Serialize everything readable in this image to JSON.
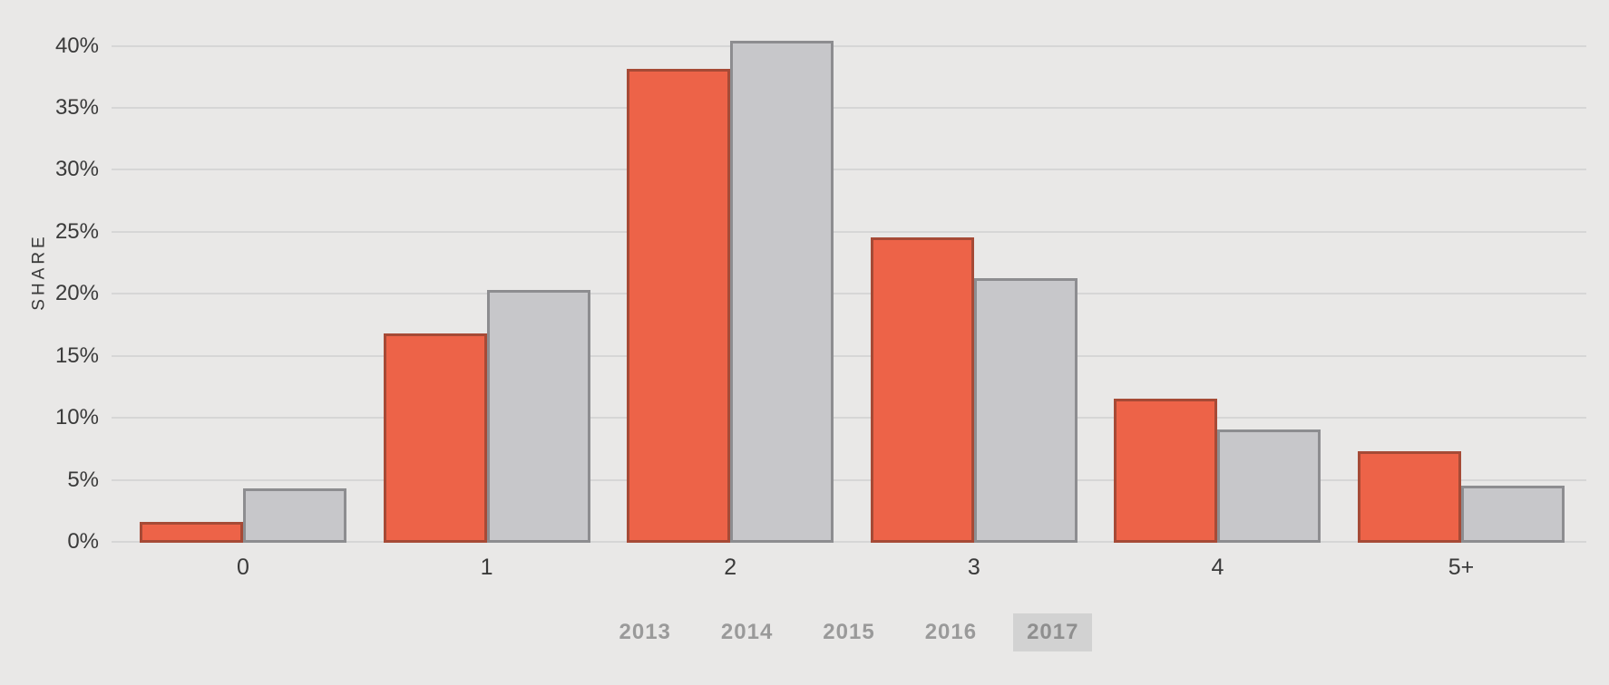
{
  "chart_data": {
    "type": "bar",
    "title": "",
    "xlabel": "",
    "ylabel": "SHARE",
    "categories": [
      "0",
      "1",
      "2",
      "3",
      "4",
      "5+"
    ],
    "series": [
      {
        "name": "orange-series",
        "color": "#ED6348",
        "border_color": "#A64A36",
        "values": [
          1.7,
          16.9,
          38.2,
          24.6,
          11.6,
          7.4
        ]
      },
      {
        "name": "gray-series",
        "color": "#C7C7CA",
        "border_color": "#8D8D90",
        "values": [
          4.4,
          20.4,
          40.5,
          21.3,
          9.1,
          4.6
        ]
      }
    ],
    "unit": "%",
    "ylim": [
      0,
      40
    ],
    "y_ticks": [
      "0%",
      "5%",
      "10%",
      "15%",
      "20%",
      "25%",
      "30%",
      "35%",
      "40%"
    ],
    "grid": true,
    "legend_position": "none"
  },
  "controls": {
    "years": [
      {
        "label": "2013",
        "active": false
      },
      {
        "label": "2014",
        "active": false
      },
      {
        "label": "2015",
        "active": false
      },
      {
        "label": "2016",
        "active": false
      },
      {
        "label": "2017",
        "active": true
      }
    ]
  },
  "colors": {
    "background": "#E9E8E7",
    "gridline": "#D6D6D6",
    "tick_text": "#3A3A3A",
    "button_text": "#9A9A9A",
    "button_active_bg": "#D2D2D2",
    "button_active_text": "#8F8F8F"
  }
}
